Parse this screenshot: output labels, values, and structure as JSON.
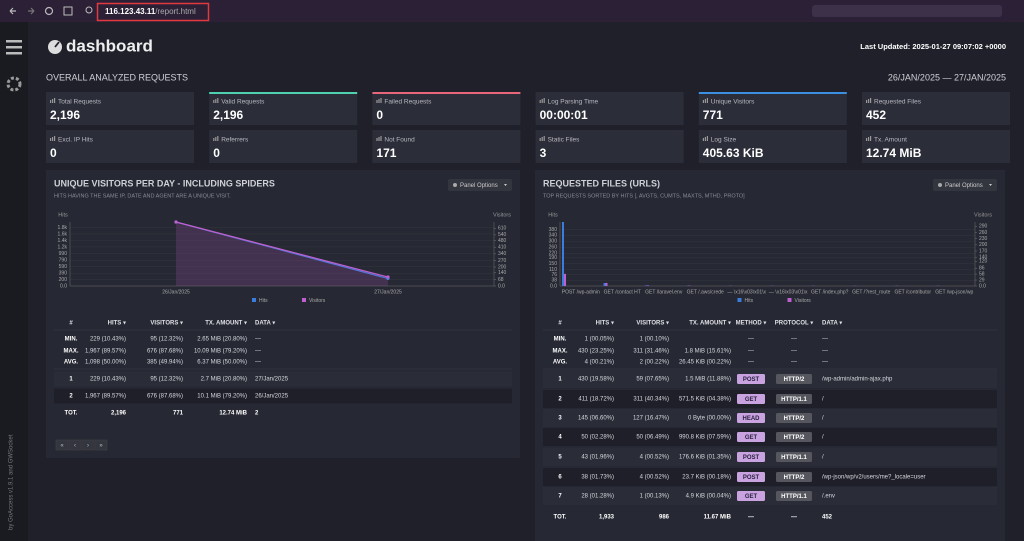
{
  "browser": {
    "url_host": "116.123.43.11",
    "url_path": "/report.html"
  },
  "sidebar": {
    "credit": "by GoAccess v1.9.1 and GWSocket"
  },
  "header": {
    "logo": "dashboard",
    "last_updated": "Last Updated: 2025-01-27 09:07:02 +0000"
  },
  "overview": {
    "title": "OVERALL ANALYZED REQUESTS",
    "date_range": "26/JAN/2025 — 27/JAN/2025",
    "cards": [
      {
        "label": "Total Requests",
        "value": "2,196"
      },
      {
        "label": "Valid Requests",
        "value": "2,196",
        "accent": "#4fd1b0"
      },
      {
        "label": "Failed Requests",
        "value": "0",
        "accent": "#e8667a"
      },
      {
        "label": "Log Parsing Time",
        "value": "00:00:01"
      },
      {
        "label": "Unique Visitors",
        "value": "771",
        "accent": "#3b8fe0"
      },
      {
        "label": "Requested Files",
        "value": "452"
      },
      {
        "label": "Excl. IP Hits",
        "value": "0"
      },
      {
        "label": "Referrers",
        "value": "0"
      },
      {
        "label": "Not Found",
        "value": "171"
      },
      {
        "label": "Static Files",
        "value": "3"
      },
      {
        "label": "Log Size",
        "value": "405.63 KiB"
      },
      {
        "label": "Tx. Amount",
        "value": "12.74 MiB"
      }
    ]
  },
  "visitors_panel": {
    "title": "UNIQUE VISITORS PER DAY - INCLUDING SPIDERS",
    "subtitle": "HITS HAVING THE SAME IP, DATE AND AGENT ARE A UNIQUE VISIT.",
    "panel_options": "Panel Options",
    "chart": {
      "type": "line",
      "y_label": "Hits",
      "y2_label": "Visitors",
      "categories": [
        "26/Jan/2025",
        "27/Jan/2025"
      ],
      "series": [
        {
          "name": "Hits",
          "color": "#3b7ddd",
          "values": [
            1967,
            229
          ]
        },
        {
          "name": "Visitors",
          "color": "#c060d0",
          "axis": "y2",
          "values": [
            676,
            95
          ]
        }
      ],
      "ylim": [
        0,
        1967
      ],
      "yticks": [
        {
          "value": 0,
          "label": "0.0"
        },
        200,
        390,
        590,
        790,
        990,
        {
          "value": 1200,
          "label": "1.2k"
        },
        {
          "value": 1400,
          "label": "1.4k"
        },
        {
          "value": 1600,
          "label": "1.6k"
        },
        {
          "value": 1800,
          "label": "1.8k"
        }
      ],
      "y2lim": [
        0,
        676
      ],
      "y2ticks": [
        {
          "value": 0,
          "label": "0.0"
        },
        68,
        140,
        200,
        270,
        340,
        410,
        480,
        540,
        610
      ]
    },
    "table": {
      "columns": [
        "#",
        "HITS ▾",
        "VISITORS ▾",
        "TX. AMOUNT ▾",
        "DATA ▾"
      ],
      "summary": [
        [
          "MIN.",
          "229 (10.43%)",
          "95 (12.32%)",
          "2.65 MiB (20.80%)",
          "—"
        ],
        [
          "MAX.",
          "1,967 (89.57%)",
          "676 (87.68%)",
          "10.09 MiB (79.20%)",
          "—"
        ],
        [
          "AVG.",
          "1,098 (50.00%)",
          "385 (49.94%)",
          "6.37 MiB (50.00%)",
          "—"
        ]
      ],
      "rows": [
        [
          "1",
          "229 (10.43%)",
          "95 (12.32%)",
          "2.7 MiB (20.80%)",
          "27/Jan/2025"
        ],
        [
          "2",
          "1,967 (89.57%)",
          "676 (87.68%)",
          "10.1 MiB (79.20%)",
          "26/Jan/2025"
        ]
      ],
      "total": [
        "TOT.",
        "2,196",
        "771",
        "12.74 MiB",
        "2"
      ]
    },
    "pagination": [
      "«",
      "‹",
      "›",
      "»"
    ]
  },
  "files_panel": {
    "title": "REQUESTED FILES (URLS)",
    "subtitle": "TOP REQUESTS SORTED BY HITS [, AVGTS, CUMTS, MAXTS, MTHD, PROTO]",
    "panel_options": "Panel Options",
    "chart": {
      "type": "bar",
      "y_label": "Hits",
      "y2_label": "Visitors",
      "categories": [
        "POST /wp-admin",
        "GET /contact HT",
        "GET /laravel.env",
        "GET /.aws/crede",
        "— \\x16\\x03\\x01\\x",
        "— \\x16\\x03\\x01\\x",
        "GET /index.php?",
        "GET /?rest_route",
        "GET /contributor",
        "GET /wp-json/wp"
      ],
      "series": [
        {
          "name": "Hits",
          "color": "#3b7ddd",
          "values": [
            430,
            20,
            4,
            2,
            1,
            1,
            1,
            1,
            1,
            1
          ]
        },
        {
          "name": "Visitors",
          "color": "#c060d0",
          "axis": "y2",
          "values": [
            59,
            15,
            3,
            2,
            1,
            1,
            1,
            1,
            1,
            1
          ]
        }
      ],
      "ylim": [
        0,
        430
      ],
      "yticks": [
        {
          "value": 0,
          "label": "0.0"
        },
        38,
        76,
        110,
        150,
        190,
        220,
        260,
        300,
        340,
        380
      ],
      "y2lim": [
        0,
        311
      ],
      "y2ticks": [
        {
          "value": 0,
          "label": "0.0"
        },
        29,
        58,
        86,
        120,
        140,
        170,
        200,
        230,
        260,
        290
      ]
    },
    "table": {
      "columns": [
        "#",
        "HITS ▾",
        "VISITORS ▾",
        "TX. AMOUNT ▾",
        "METHOD ▾",
        "PROTOCOL ▾",
        "DATA ▾"
      ],
      "summary": [
        [
          "MIN.",
          "1 (00.05%)",
          "1 (00.10%)",
          null,
          "—",
          "—",
          "—"
        ],
        [
          "MAX.",
          "430 (23.25%)",
          "311 (31.46%)",
          "1.8 MiB (15.61%)",
          "—",
          "—",
          "—"
        ],
        [
          "AVG.",
          "4 (00.21%)",
          "2 (00.22%)",
          "26.45 KiB (00.22%)",
          "—",
          "—",
          "—"
        ]
      ],
      "rows": [
        [
          "1",
          "430 (19.58%)",
          "59 (07.65%)",
          "1.5 MiB (11.88%)",
          "POST",
          "HTTP/2",
          "/wp-admin/admin-ajax.php"
        ],
        [
          "2",
          "411 (18.72%)",
          "311 (40.34%)",
          "571.5 KiB (04.38%)",
          "GET",
          "HTTP/1.1",
          "/"
        ],
        [
          "3",
          "145 (06.60%)",
          "127 (16.47%)",
          "0 Byte (00.00%)",
          "HEAD",
          "HTTP/2",
          "/"
        ],
        [
          "4",
          "50 (02.28%)",
          "50 (06.49%)",
          "990.8 KiB (07.59%)",
          "GET",
          "HTTP/2",
          "/"
        ],
        [
          "5",
          "43 (01.96%)",
          "4 (00.52%)",
          "176.6 KiB (01.35%)",
          "POST",
          "HTTP/1.1",
          "/"
        ],
        [
          "6",
          "38 (01.73%)",
          "4 (00.52%)",
          "23.7 KiB (00.18%)",
          "POST",
          "HTTP/2",
          "/wp-json/wp/v2/users/me?_locale=user"
        ],
        [
          "7",
          "28 (01.28%)",
          "1 (00.13%)",
          "4.9 KiB (00.04%)",
          "GET",
          "HTTP/1.1",
          "/.env"
        ]
      ],
      "total": [
        "TOT.",
        "1,933",
        "986",
        "11.67 MiB",
        "—",
        "—",
        "452"
      ]
    }
  }
}
